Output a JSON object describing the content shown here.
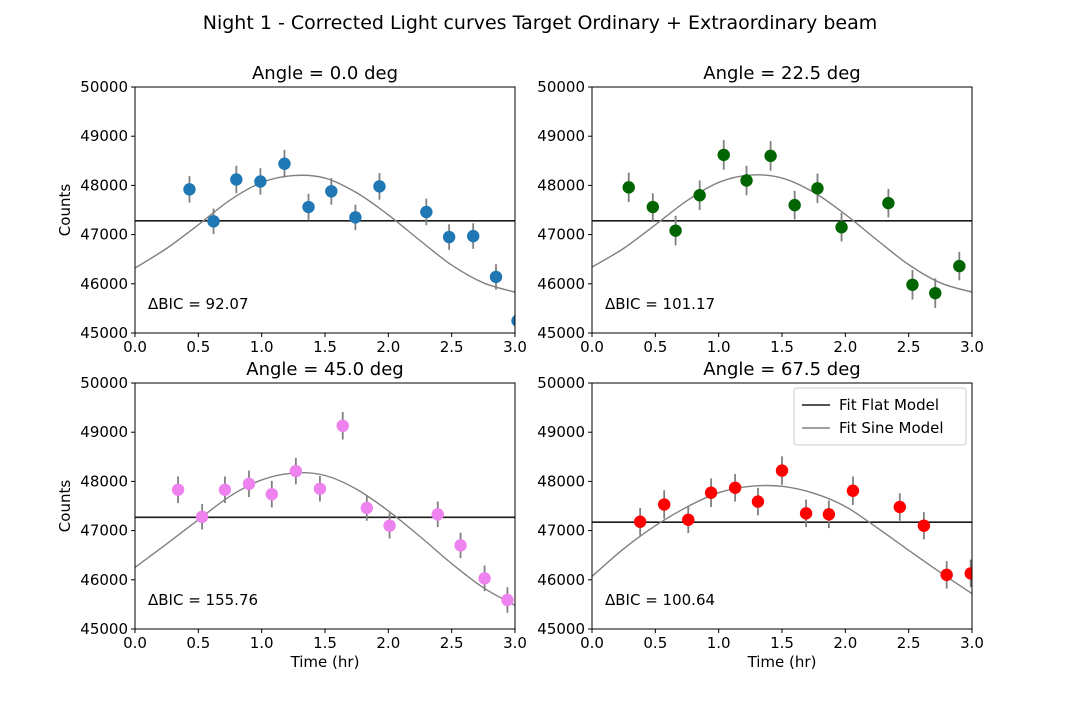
{
  "figure": {
    "suptitle": "Night 1 - Corrected Light curves Target Ordinary + Extraordinary beam"
  },
  "chart_data": [
    {
      "type": "scatter",
      "title": "Angle = 0.0 deg",
      "xlabel": "",
      "ylabel": "Counts",
      "xlim": [
        0.0,
        3.0
      ],
      "ylim": [
        45000,
        50000
      ],
      "xticks": [
        "0.0",
        "0.5",
        "1.0",
        "1.5",
        "2.0",
        "2.5",
        "3.0"
      ],
      "yticks": [
        "45000",
        "46000",
        "47000",
        "48000",
        "49000",
        "50000"
      ],
      "point_color": "#1f77b4",
      "annotation": "ΔBIC = 92.07",
      "flat_model": 47280,
      "sine_model": {
        "x": [
          0.0,
          0.25,
          0.5,
          0.75,
          1.0,
          1.25,
          1.5,
          1.75,
          2.0,
          2.25,
          2.5,
          2.75,
          3.0
        ],
        "y": [
          46320,
          46720,
          47200,
          47700,
          48060,
          48200,
          48150,
          47850,
          47400,
          46880,
          46380,
          46020,
          45830
        ]
      },
      "points": [
        {
          "x": 0.43,
          "y": 47920,
          "err": 270
        },
        {
          "x": 0.62,
          "y": 47270,
          "err": 260
        },
        {
          "x": 0.8,
          "y": 48120,
          "err": 280
        },
        {
          "x": 0.99,
          "y": 48080,
          "err": 270
        },
        {
          "x": 1.18,
          "y": 48440,
          "err": 280
        },
        {
          "x": 1.37,
          "y": 47560,
          "err": 270
        },
        {
          "x": 1.55,
          "y": 47880,
          "err": 270
        },
        {
          "x": 1.74,
          "y": 47350,
          "err": 260
        },
        {
          "x": 1.93,
          "y": 47980,
          "err": 270
        },
        {
          "x": 2.3,
          "y": 47460,
          "err": 270
        },
        {
          "x": 2.48,
          "y": 46950,
          "err": 260
        },
        {
          "x": 2.67,
          "y": 46970,
          "err": 260
        },
        {
          "x": 2.85,
          "y": 46140,
          "err": 260
        },
        {
          "x": 3.02,
          "y": 45250,
          "err": 250
        }
      ]
    },
    {
      "type": "scatter",
      "title": "Angle = 22.5 deg",
      "xlabel": "",
      "ylabel": "",
      "xlim": [
        0.0,
        3.0
      ],
      "ylim": [
        45000,
        50000
      ],
      "xticks": [
        "0.0",
        "0.5",
        "1.0",
        "1.5",
        "2.0",
        "2.5",
        "3.0"
      ],
      "yticks": [
        "45000",
        "46000",
        "47000",
        "48000",
        "49000",
        "50000"
      ],
      "point_color": "#006400",
      "annotation": "ΔBIC = 101.17",
      "flat_model": 47280,
      "sine_model": {
        "x": [
          0.0,
          0.25,
          0.5,
          0.75,
          1.0,
          1.25,
          1.5,
          1.75,
          2.0,
          2.25,
          2.5,
          2.75,
          3.0
        ],
        "y": [
          46340,
          46720,
          47200,
          47690,
          48060,
          48210,
          48150,
          47860,
          47410,
          46890,
          46390,
          46020,
          45830
        ]
      },
      "points": [
        {
          "x": 0.29,
          "y": 47960,
          "err": 300
        },
        {
          "x": 0.48,
          "y": 47560,
          "err": 280
        },
        {
          "x": 0.66,
          "y": 47080,
          "err": 300
        },
        {
          "x": 0.85,
          "y": 47800,
          "err": 300
        },
        {
          "x": 1.04,
          "y": 48620,
          "err": 300
        },
        {
          "x": 1.22,
          "y": 48100,
          "err": 300
        },
        {
          "x": 1.41,
          "y": 48600,
          "err": 300
        },
        {
          "x": 1.6,
          "y": 47600,
          "err": 290
        },
        {
          "x": 1.78,
          "y": 47940,
          "err": 300
        },
        {
          "x": 1.97,
          "y": 47150,
          "err": 290
        },
        {
          "x": 2.34,
          "y": 47640,
          "err": 290
        },
        {
          "x": 2.53,
          "y": 45980,
          "err": 300
        },
        {
          "x": 2.71,
          "y": 45810,
          "err": 300
        },
        {
          "x": 2.9,
          "y": 46360,
          "err": 290
        }
      ]
    },
    {
      "type": "scatter",
      "title": "Angle = 45.0 deg",
      "xlabel": "Time (hr)",
      "ylabel": "Counts",
      "xlim": [
        0.0,
        3.0
      ],
      "ylim": [
        45000,
        50000
      ],
      "xticks": [
        "0.0",
        "0.5",
        "1.0",
        "1.5",
        "2.0",
        "2.5",
        "3.0"
      ],
      "yticks": [
        "45000",
        "46000",
        "47000",
        "48000",
        "49000",
        "50000"
      ],
      "point_color": "#ee82ee",
      "annotation": "ΔBIC = 155.76",
      "flat_model": 47270,
      "sine_model": {
        "x": [
          0.0,
          0.25,
          0.5,
          0.75,
          1.0,
          1.25,
          1.5,
          1.75,
          2.0,
          2.25,
          2.5,
          2.75,
          3.0
        ],
        "y": [
          46250,
          46730,
          47220,
          47700,
          48030,
          48170,
          48120,
          47840,
          47400,
          46880,
          46330,
          45840,
          45480
        ]
      },
      "points": [
        {
          "x": 0.34,
          "y": 47830,
          "err": 270
        },
        {
          "x": 0.53,
          "y": 47280,
          "err": 260
        },
        {
          "x": 0.71,
          "y": 47830,
          "err": 270
        },
        {
          "x": 0.9,
          "y": 47950,
          "err": 270
        },
        {
          "x": 1.08,
          "y": 47740,
          "err": 270
        },
        {
          "x": 1.27,
          "y": 48210,
          "err": 270
        },
        {
          "x": 1.46,
          "y": 47850,
          "err": 260
        },
        {
          "x": 1.64,
          "y": 49130,
          "err": 280
        },
        {
          "x": 1.83,
          "y": 47460,
          "err": 260
        },
        {
          "x": 2.01,
          "y": 47100,
          "err": 260
        },
        {
          "x": 2.39,
          "y": 47330,
          "err": 260
        },
        {
          "x": 2.57,
          "y": 46700,
          "err": 260
        },
        {
          "x": 2.76,
          "y": 46030,
          "err": 260
        },
        {
          "x": 2.94,
          "y": 45590,
          "err": 260
        }
      ]
    },
    {
      "type": "scatter",
      "title": "Angle = 67.5 deg",
      "xlabel": "Time (hr)",
      "ylabel": "",
      "xlim": [
        0.0,
        3.0
      ],
      "ylim": [
        45000,
        50000
      ],
      "xticks": [
        "0.0",
        "0.5",
        "1.0",
        "1.5",
        "2.0",
        "2.5",
        "3.0"
      ],
      "yticks": [
        "45000",
        "46000",
        "47000",
        "48000",
        "49000",
        "50000"
      ],
      "point_color": "#ff0000",
      "annotation": "ΔBIC = 100.64",
      "flat_model": 47170,
      "sine_model": {
        "x": [
          0.0,
          0.25,
          0.5,
          0.75,
          1.0,
          1.25,
          1.5,
          1.75,
          2.0,
          2.25,
          2.5,
          2.75,
          3.0
        ],
        "y": [
          46070,
          46630,
          47100,
          47480,
          47770,
          47900,
          47900,
          47760,
          47490,
          47060,
          46600,
          46150,
          45720
        ]
      },
      "points": [
        {
          "x": 0.38,
          "y": 47180,
          "err": 280
        },
        {
          "x": 0.57,
          "y": 47530,
          "err": 290
        },
        {
          "x": 0.76,
          "y": 47220,
          "err": 270
        },
        {
          "x": 0.94,
          "y": 47770,
          "err": 290
        },
        {
          "x": 1.13,
          "y": 47870,
          "err": 280
        },
        {
          "x": 1.31,
          "y": 47590,
          "err": 280
        },
        {
          "x": 1.5,
          "y": 48220,
          "err": 290
        },
        {
          "x": 1.69,
          "y": 47350,
          "err": 280
        },
        {
          "x": 1.87,
          "y": 47330,
          "err": 280
        },
        {
          "x": 2.06,
          "y": 47810,
          "err": 290
        },
        {
          "x": 2.43,
          "y": 47480,
          "err": 280
        },
        {
          "x": 2.62,
          "y": 47100,
          "err": 280
        },
        {
          "x": 2.8,
          "y": 46100,
          "err": 280
        },
        {
          "x": 2.99,
          "y": 46130,
          "err": 280
        }
      ],
      "legend": {
        "placement": "top-right",
        "entries": [
          {
            "label": "Fit Flat Model",
            "color": "#1a1a1a"
          },
          {
            "label": "Fit Sine Model",
            "color": "#808080"
          }
        ]
      }
    }
  ]
}
